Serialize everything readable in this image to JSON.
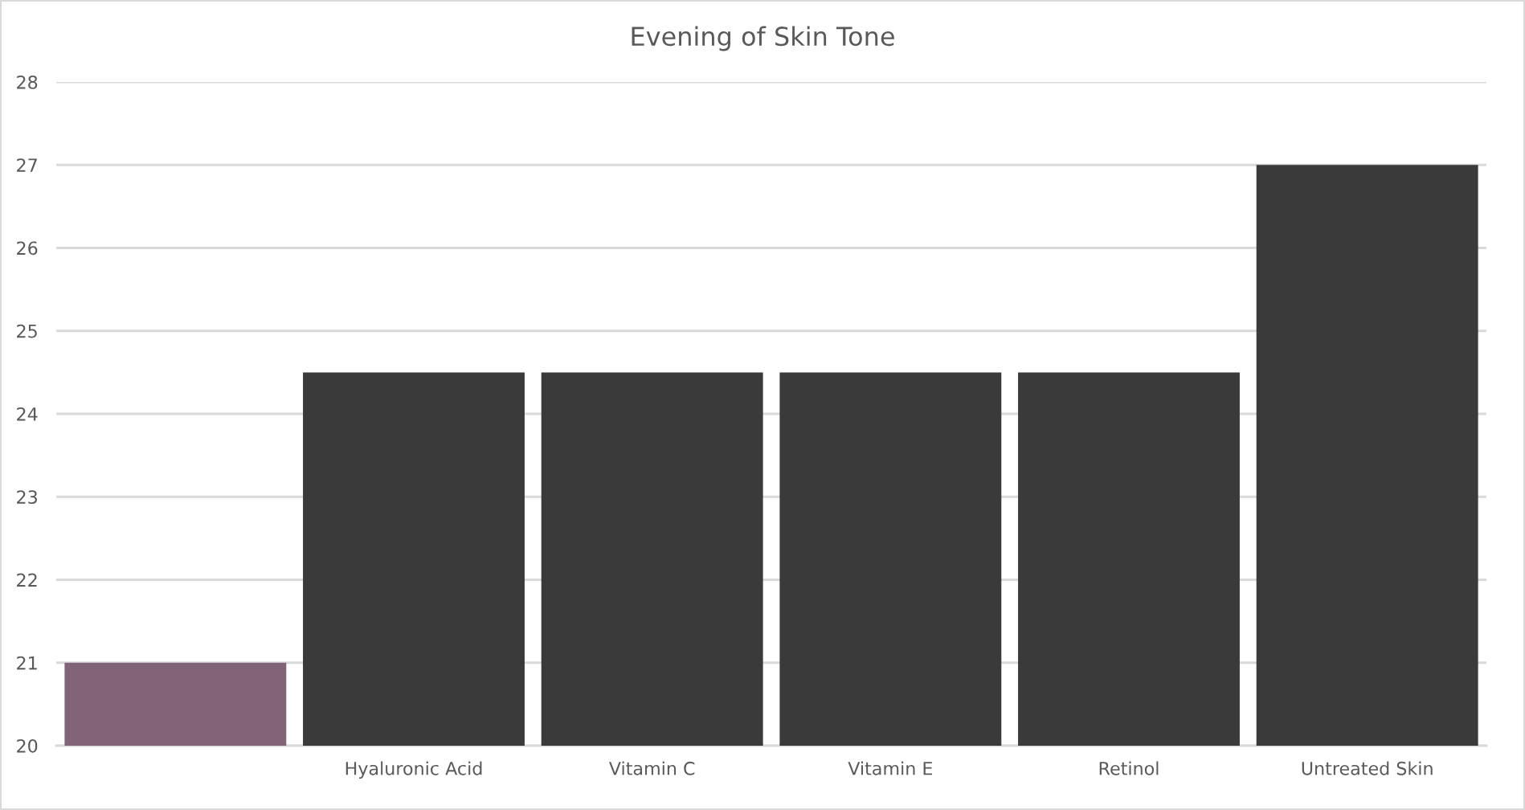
{
  "chart_data": {
    "type": "bar",
    "title": "Evening of Skin Tone",
    "categories": [
      null,
      "Hyaluronic Acid",
      "Vitamin C",
      "Vitamin E",
      "Retinol",
      "Untreated Skin"
    ],
    "values": [
      21,
      24.5,
      24.5,
      24.5,
      24.5,
      27
    ],
    "colors": [
      "#806576",
      "#3a3a3a",
      "#3a3a3a",
      "#3a3a3a",
      "#3a3a3a",
      "#3a3a3a"
    ],
    "ylim": [
      20,
      28
    ],
    "yticks": [
      20,
      21,
      22,
      23,
      24,
      25,
      26,
      27,
      28
    ],
    "grid": "y",
    "legend": false
  }
}
